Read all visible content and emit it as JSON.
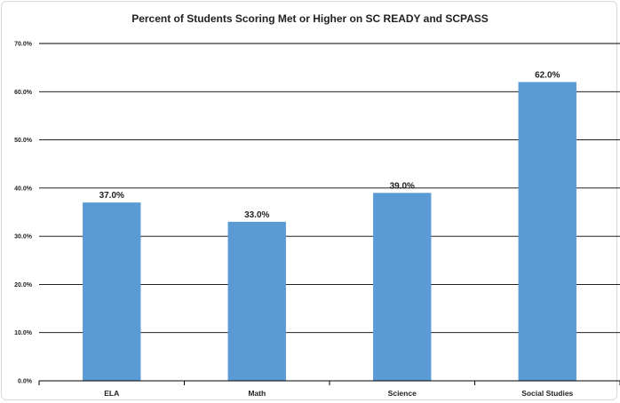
{
  "chart_data": {
    "type": "bar",
    "title": "Percent of Students Scoring Met or Higher on SC READY and SCPASS",
    "categories": [
      "ELA",
      "Math",
      "Science",
      "Social Studies"
    ],
    "values": [
      37.0,
      33.0,
      39.0,
      62.0
    ],
    "data_labels": [
      "37.0%",
      "33.0%",
      "39.0%",
      "62.0%"
    ],
    "yticks": [
      0,
      10,
      20,
      30,
      40,
      50,
      60,
      70
    ],
    "ytick_labels": [
      "0.0%",
      "10.0%",
      "20.0%",
      "30.0%",
      "40.0%",
      "50.0%",
      "60.0%",
      "70.0%"
    ],
    "ylim": [
      0,
      70
    ],
    "grid": true,
    "legend": "none",
    "bar_color": "#5b9bd5"
  }
}
